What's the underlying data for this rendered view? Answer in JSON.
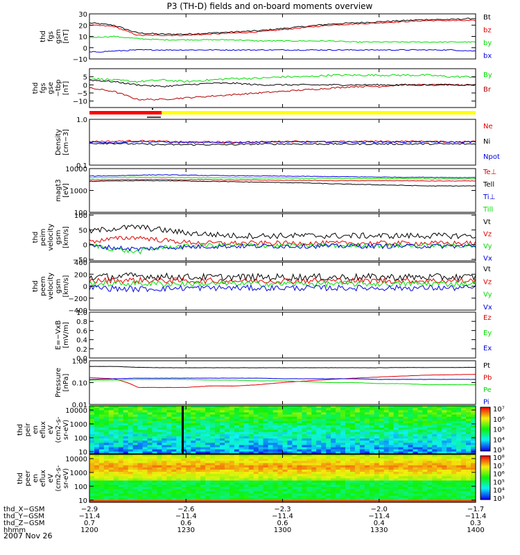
{
  "title": "P3 (TH-D) fields and on-board moments overview",
  "date": "2007 Nov 26",
  "chart_data": [
    {
      "type": "line",
      "ylabel": [
        "thd",
        "fgs",
        "gsm",
        "[nT]"
      ],
      "ylim": [
        -10,
        30
      ],
      "ticks": [
        "30",
        "20",
        "10",
        "0",
        "−10"
      ],
      "series": [
        {
          "name": "Bt",
          "color": "#000000",
          "values": [
            22,
            20,
            13,
            12,
            12,
            13,
            14,
            15,
            17,
            19,
            21,
            22,
            23,
            24,
            25,
            25,
            26
          ]
        },
        {
          "name": "bz",
          "color": "#e00000",
          "values": [
            20,
            19,
            11,
            11,
            11,
            12,
            13,
            14,
            16,
            18,
            20,
            21,
            22,
            23,
            24,
            24,
            24
          ]
        },
        {
          "name": "by",
          "color": "#00dd00",
          "values": [
            9,
            10,
            8,
            7,
            7,
            7,
            7,
            6,
            6,
            6,
            6,
            5,
            5,
            5,
            5,
            5,
            5
          ]
        },
        {
          "name": "bx",
          "color": "#0000dd",
          "values": [
            -4,
            -3,
            -2,
            -2,
            -2,
            -2,
            -2,
            -2,
            -2,
            -2,
            -2,
            -2,
            -2,
            -2,
            -2,
            -2,
            -3
          ]
        }
      ]
    },
    {
      "type": "line",
      "ylabel": [
        "thd",
        "fgs",
        "gse",
        "−tbp",
        "[nT]"
      ],
      "ylim": [
        -14,
        10
      ],
      "ticks": [
        "5",
        "0",
        "−5",
        "−10"
      ],
      "series": [
        {
          "name": "By",
          "color": "#00dd00",
          "values": [
            4,
            3,
            2,
            3,
            2,
            3,
            4,
            4,
            5,
            5,
            6,
            6,
            6,
            6,
            6,
            5,
            5
          ]
        },
        {
          "name": "Br",
          "color": "#b00000",
          "values": [
            -2,
            -4,
            -9,
            -9,
            -8,
            -7,
            -6,
            -5,
            -4,
            -3,
            -2,
            -1,
            -1,
            0,
            0,
            0,
            0
          ]
        },
        {
          "name": "",
          "color": "#000000",
          "values": [
            3,
            2,
            0,
            -1,
            0,
            1,
            1,
            0,
            0,
            0,
            0,
            0,
            0,
            0,
            0,
            0,
            0
          ]
        }
      ]
    },
    {
      "type": "line",
      "ylabel": [
        "Density",
        "[cm−3]"
      ],
      "scale": "log",
      "ylim": [
        0.1,
        1.0
      ],
      "ticks": [
        "1.0",
        "0.1"
      ],
      "series": [
        {
          "name": "Ne",
          "color": "#e00000",
          "values": [
            0.33,
            0.33,
            0.34,
            0.33,
            0.32,
            0.32,
            0.32,
            0.32,
            0.33,
            0.33,
            0.32,
            0.33,
            0.33,
            0.33,
            0.33,
            0.32,
            0.33
          ]
        },
        {
          "name": "Ni",
          "color": "#000000",
          "values": [
            0.3,
            0.3,
            0.29,
            0.28,
            0.28,
            0.28,
            0.28,
            0.29,
            0.29,
            0.29,
            0.29,
            0.29,
            0.29,
            0.29,
            0.29,
            0.29,
            0.29
          ]
        },
        {
          "name": "Npot",
          "color": "#0000dd",
          "values": [
            0.32,
            0.31,
            0.33,
            0.32,
            0.31,
            0.31,
            0.31,
            0.32,
            0.32,
            0.32,
            0.32,
            0.32,
            0.32,
            0.32,
            0.32,
            0.32,
            0.32
          ]
        }
      ]
    },
    {
      "type": "line",
      "ylabel": [
        "magt3",
        "[eV]"
      ],
      "scale": "log",
      "ylim": [
        100,
        10000
      ],
      "ticks": [
        "10000",
        "1000",
        "100"
      ],
      "series": [
        {
          "name": "Te⊥",
          "color": "#e00000",
          "values": [
            3000,
            3100,
            3200,
            3200,
            3100,
            3100,
            3000,
            3000,
            2900,
            2900,
            2800,
            2800,
            2800,
            2800,
            2700,
            2700,
            2700
          ]
        },
        {
          "name": "Tell",
          "color": "#000000",
          "values": [
            2600,
            2700,
            2800,
            2800,
            2700,
            2600,
            2500,
            2400,
            2300,
            2200,
            2000,
            1900,
            1800,
            1700,
            1600,
            1600,
            1600
          ]
        },
        {
          "name": "Ti⊥",
          "color": "#0000dd",
          "values": [
            4500,
            4700,
            5000,
            5200,
            5000,
            4800,
            4700,
            4600,
            4500,
            4400,
            4300,
            4200,
            4100,
            4000,
            4000,
            3900,
            3900
          ]
        },
        {
          "name": "Till",
          "color": "#00dd00",
          "values": [
            3800,
            3900,
            4000,
            4000,
            3900,
            3800,
            3800,
            3700,
            3700,
            3600,
            3600,
            3500,
            3500,
            3500,
            3400,
            3400,
            3400
          ]
        }
      ]
    },
    {
      "type": "line",
      "ylabel": [
        "thd",
        "peim",
        "velocity",
        "gsm",
        "[km/s]"
      ],
      "ylim": [
        -55,
        105
      ],
      "ticks": [
        "100",
        "50",
        "0",
        "−50"
      ],
      "series": [
        {
          "name": "Vt",
          "color": "#000000",
          "values": [
            45,
            55,
            60,
            50,
            40,
            35,
            30,
            30,
            30,
            30,
            30,
            30,
            30,
            30,
            30,
            30,
            30
          ]
        },
        {
          "name": "Vz",
          "color": "#e00000",
          "values": [
            10,
            20,
            25,
            15,
            8,
            5,
            5,
            5,
            5,
            5,
            5,
            5,
            5,
            5,
            5,
            5,
            5
          ]
        },
        {
          "name": "Vy",
          "color": "#00dd00",
          "values": [
            0,
            -15,
            -25,
            -10,
            -5,
            -2,
            -3,
            -3,
            -3,
            -3,
            -3,
            -3,
            -3,
            -3,
            -3,
            -3,
            -3
          ]
        },
        {
          "name": "Vx",
          "color": "#0000dd",
          "values": [
            -5,
            -10,
            -15,
            -10,
            -8,
            -6,
            -5,
            -5,
            -5,
            -5,
            -5,
            -5,
            -5,
            -5,
            -5,
            -5,
            -5
          ]
        }
      ]
    },
    {
      "type": "line",
      "ylabel": [
        "thd",
        "peem",
        "velocity",
        "gsm",
        "[km/s]"
      ],
      "ylim": [
        -400,
        400
      ],
      "ticks": [
        "400",
        "200",
        "0",
        "−200",
        "−400"
      ],
      "series": [
        {
          "name": "Vt",
          "color": "#000000",
          "values": [
            150,
            160,
            170,
            160,
            150,
            150,
            150,
            150,
            150,
            150,
            150,
            150,
            150,
            150,
            150,
            150,
            150
          ]
        },
        {
          "name": "Vz",
          "color": "#e00000",
          "values": [
            90,
            95,
            100,
            95,
            90,
            90,
            90,
            90,
            90,
            90,
            90,
            90,
            90,
            90,
            90,
            90,
            90
          ]
        },
        {
          "name": "Vy",
          "color": "#00dd00",
          "values": [
            40,
            40,
            45,
            40,
            40,
            40,
            40,
            40,
            40,
            40,
            40,
            40,
            40,
            40,
            40,
            40,
            40
          ]
        },
        {
          "name": "Vx",
          "color": "#0000dd",
          "values": [
            -20,
            -40,
            -50,
            -40,
            -30,
            -30,
            -30,
            -30,
            -30,
            -30,
            -30,
            -30,
            -30,
            -30,
            -30,
            -30,
            -30
          ]
        }
      ]
    },
    {
      "type": "line",
      "ylabel": [
        "E=−VxB",
        "[mV/m]"
      ],
      "ylim": [
        0,
        1
      ],
      "ticks": [
        "1.0",
        "0.8",
        "0.6",
        "0.4",
        "0.2",
        "0.0"
      ],
      "series": [
        {
          "name": "Ez",
          "color": "#e00000",
          "values": []
        },
        {
          "name": "Ey",
          "color": "#00dd00",
          "values": []
        },
        {
          "name": "Ex",
          "color": "#0000dd",
          "values": []
        }
      ]
    },
    {
      "type": "line",
      "ylabel": [
        "Pressure",
        "[nPa]"
      ],
      "scale": "log",
      "ylim": [
        0.01,
        1.0
      ],
      "ticks": [
        "1.00",
        "0.10",
        "0.01"
      ],
      "series": [
        {
          "name": "Pt",
          "color": "#000000",
          "values": [
            0.55,
            0.55,
            0.5,
            0.48,
            0.48,
            0.48,
            0.48,
            0.48,
            0.48,
            0.48,
            0.48,
            0.48,
            0.48,
            0.49,
            0.49,
            0.49,
            0.5
          ]
        },
        {
          "name": "Pb",
          "color": "#e00000",
          "values": [
            0.17,
            0.15,
            0.06,
            0.06,
            0.06,
            0.07,
            0.07,
            0.08,
            0.1,
            0.12,
            0.14,
            0.16,
            0.18,
            0.2,
            0.22,
            0.23,
            0.24
          ]
        },
        {
          "name": "Pe",
          "color": "#00dd00",
          "values": [
            0.13,
            0.13,
            0.14,
            0.14,
            0.14,
            0.13,
            0.13,
            0.12,
            0.12,
            0.11,
            0.1,
            0.1,
            0.09,
            0.09,
            0.08,
            0.08,
            0.08
          ]
        },
        {
          "name": "Pi",
          "color": "#0000dd",
          "values": [
            0.14,
            0.15,
            0.16,
            0.16,
            0.16,
            0.16,
            0.16,
            0.16,
            0.15,
            0.15,
            0.15,
            0.15,
            0.14,
            0.14,
            0.14,
            0.14,
            0.14
          ]
        }
      ]
    },
    {
      "type": "heatmap",
      "ylabel": [
        "thd",
        "peir",
        "en",
        "eflux",
        "eV",
        "(cm2-s-",
        "sr-eV)"
      ],
      "scale": "log",
      "ylim": [
        7,
        20000
      ],
      "ticks": [
        "10000",
        "1000",
        "100",
        "10"
      ],
      "colorbar_ticks": [
        "10⁷",
        "10⁶",
        "10⁵",
        "10⁴",
        "10³"
      ]
    },
    {
      "type": "heatmap",
      "ylabel": [
        "thd",
        "peer",
        "en",
        "eflux",
        "eV",
        "(cm2-s-",
        "sr-eV)"
      ],
      "scale": "log",
      "ylim": [
        7,
        20000
      ],
      "ticks": [
        "10000",
        "1000",
        "100",
        "10"
      ],
      "colorbar_ticks": [
        "10⁸",
        "10⁷",
        "10⁶",
        "10⁵",
        "10⁴",
        "10³"
      ]
    }
  ],
  "xaxis": {
    "rows": [
      {
        "label": "thd_X−GSM",
        "values": [
          "−2.9",
          "−2.6",
          "−2.3",
          "−2.0",
          "−1.7"
        ]
      },
      {
        "label": "thd_Y−GSM",
        "values": [
          "−11.4",
          "−11.4",
          "−11.4",
          "−11.4",
          "−11.4"
        ]
      },
      {
        "label": "thd_Z−GSM",
        "values": [
          "0.7",
          "0.6",
          "0.6",
          "0.4",
          "0.3"
        ]
      },
      {
        "label": "hhmm",
        "values": [
          "1200",
          "1230",
          "1300",
          "1330",
          "1400"
        ]
      }
    ]
  },
  "mode_bar": {
    "colors": [
      "#ff0000",
      "#ffff00"
    ],
    "switch_fraction": 0.18
  }
}
